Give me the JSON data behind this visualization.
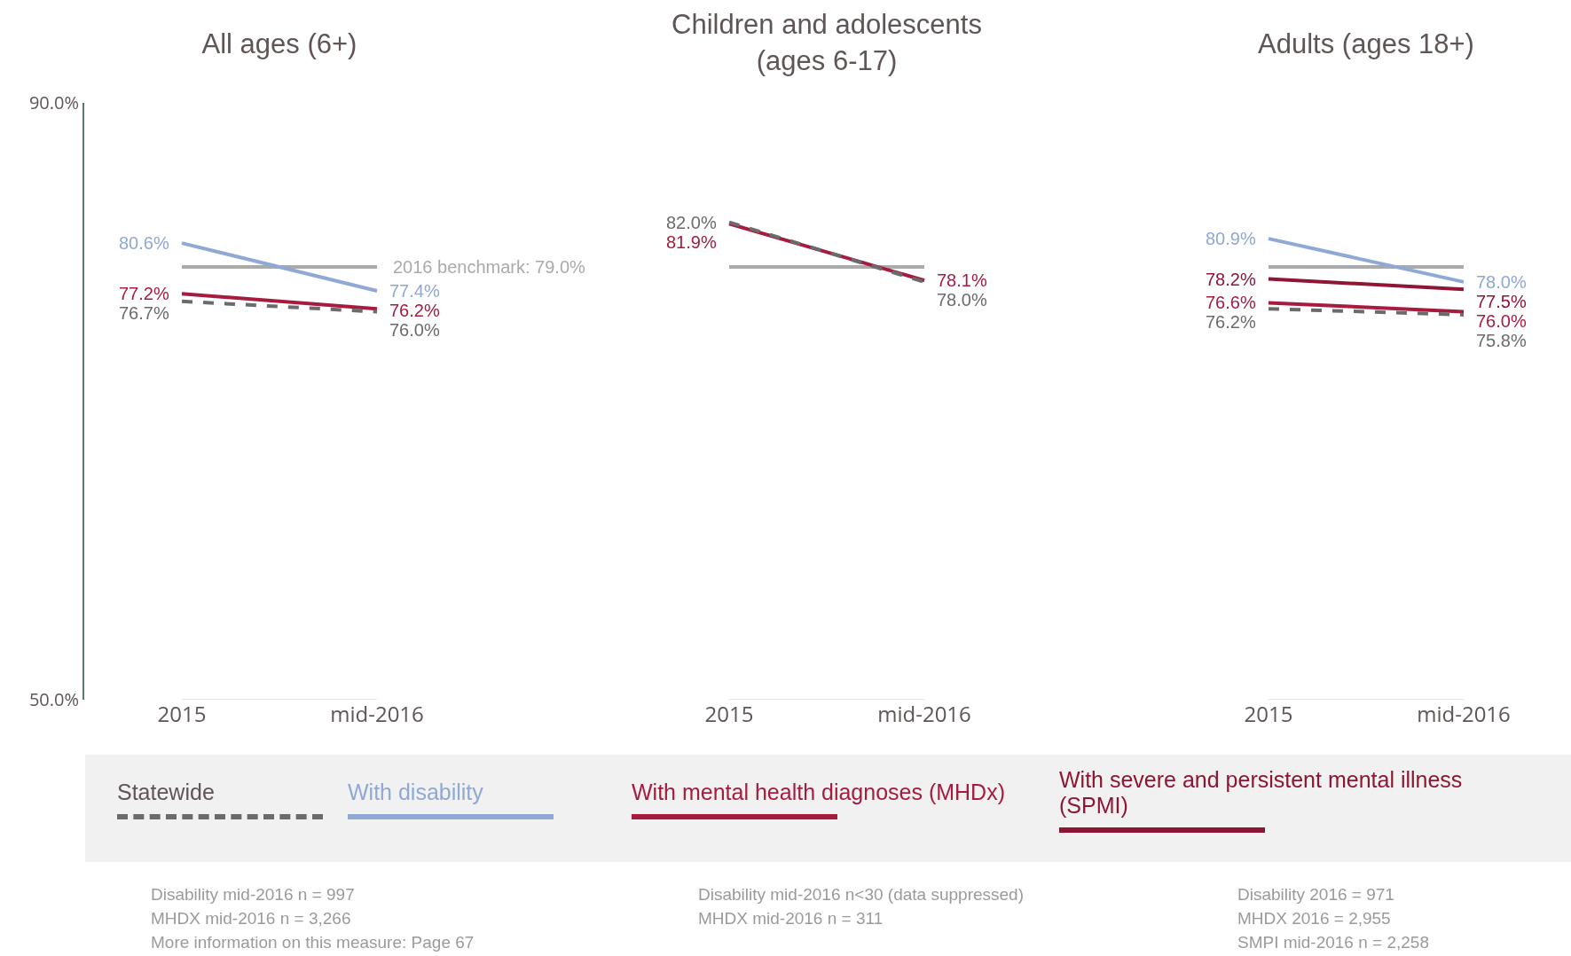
{
  "chart_data": [
    {
      "type": "line",
      "title": "All ages (6+)",
      "categories": [
        "2015",
        "mid-2016"
      ],
      "ylim": [
        50,
        90
      ],
      "yticks": [
        {
          "value": 50,
          "label": "50.0%"
        },
        {
          "value": 90,
          "label": "90.0%"
        }
      ],
      "grid": false,
      "marker": "none",
      "series": [
        {
          "color": "#6b6b6b",
          "line_style": "dashed",
          "values": [
            76.7,
            76.0
          ],
          "value_labels": [
            "76.7%",
            "76.0%"
          ]
        },
        {
          "color": "#8fa8d4",
          "values": [
            80.6,
            77.4
          ],
          "value_labels": [
            "80.6%",
            "77.4%"
          ]
        },
        {
          "color": "#a51c3f",
          "values": [
            77.2,
            76.2
          ],
          "value_labels": [
            "77.2%",
            "76.2%"
          ]
        }
      ],
      "ref_lines": [
        {
          "axis": "y",
          "value": 79.0,
          "label": "2016 benchmark: 79.0%",
          "color": "#aaaaaa"
        }
      ],
      "annotations": [
        "Disability mid-2016 n = 997",
        "MHDX mid-2016 n = 3,266",
        "More information on this measure: Page 67"
      ]
    },
    {
      "type": "line",
      "title": "Children and adolescents\n(ages 6-17)",
      "categories": [
        "2015",
        "mid-2016"
      ],
      "ylim": [
        50,
        90
      ],
      "tick_labels": "x",
      "grid": false,
      "marker": "none",
      "series": [
        {
          "color": "#6b6b6b",
          "line_style": "dashed",
          "values": [
            82.0,
            78.0
          ],
          "value_labels": [
            "82.0%",
            "78.0%"
          ]
        },
        {
          "color": "#a51c3f",
          "values": [
            81.9,
            78.1
          ],
          "value_labels": [
            "81.9%",
            "78.1%"
          ]
        }
      ],
      "ref_lines": [
        {
          "axis": "y",
          "value": 79.0,
          "color": "#aaaaaa"
        }
      ],
      "annotations": [
        "Disability mid-2016 n<30 (data suppressed)",
        "MHDX mid-2016 n = 311"
      ]
    },
    {
      "type": "line",
      "title": "Adults (ages 18+)",
      "categories": [
        "2015",
        "mid-2016"
      ],
      "ylim": [
        50,
        90
      ],
      "tick_labels": "x",
      "grid": false,
      "legend": "bottom",
      "marker": "none",
      "series": [
        {
          "name": "Statewide",
          "color": "#6b6b6b",
          "line_style": "dashed",
          "values": [
            76.2,
            75.8
          ],
          "value_labels": [
            "76.2%",
            "75.8%"
          ]
        },
        {
          "name": "With disability",
          "color": "#8fa8d4",
          "values": [
            80.9,
            78.0
          ],
          "value_labels": [
            "80.9%",
            "78.0%"
          ]
        },
        {
          "name": "With mental health diagnoses (MHDx)",
          "color": "#a51c3f",
          "values": [
            76.6,
            76.0
          ],
          "value_labels": [
            "76.6%",
            "76.0%"
          ]
        },
        {
          "name": "With severe and persistent mental illness (SPMI)",
          "color": "#8e1634",
          "values": [
            78.2,
            77.5
          ],
          "value_labels": [
            "78.2%",
            "77.5%"
          ]
        }
      ],
      "ref_lines": [
        {
          "axis": "y",
          "value": 79.0,
          "color": "#aaaaaa"
        }
      ],
      "annotations": [
        "Disability 2016 = 971",
        "MHDX 2016 = 2,955",
        "SMPI mid-2016 n = 2,258"
      ]
    }
  ]
}
